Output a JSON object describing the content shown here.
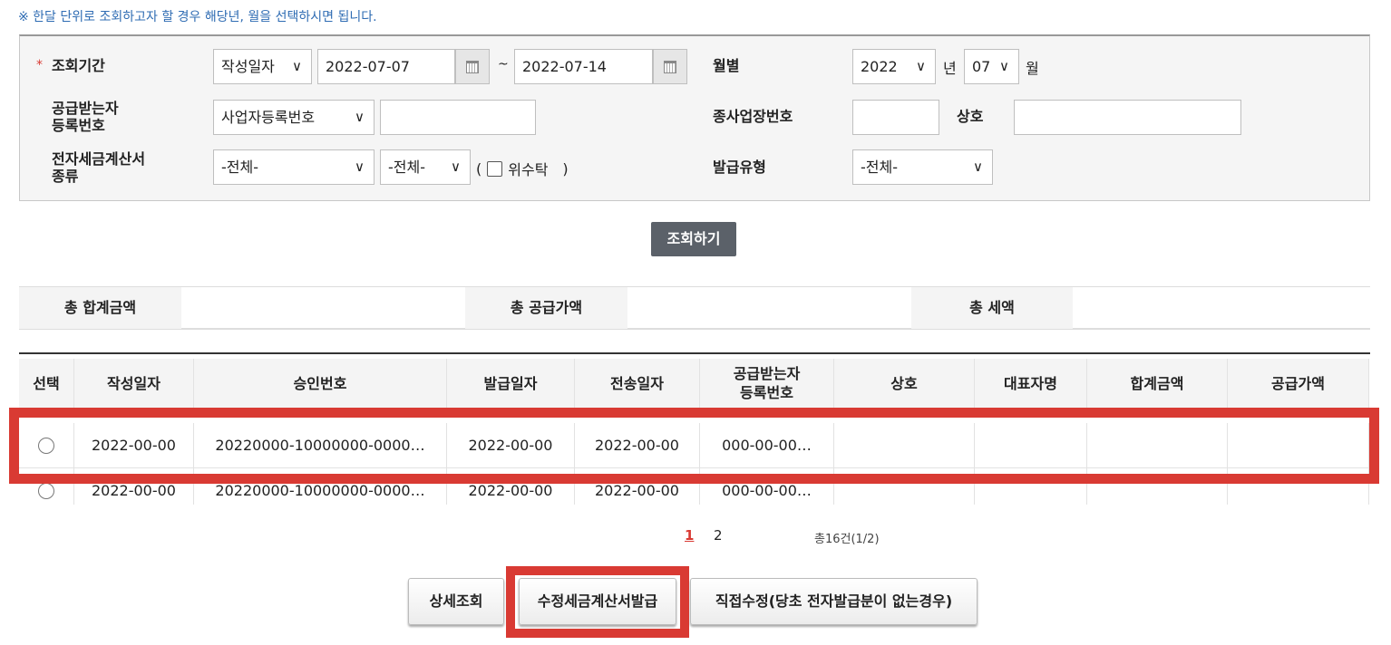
{
  "notice": "※ 한달 단위로 조회하고자 할 경우 해당년, 월을 선택하시면 됩니다.",
  "filters": {
    "period_label": "조회기간",
    "period_type": "작성일자",
    "date_from": "2022-07-07",
    "date_sep": "~",
    "date_to": "2022-07-14",
    "monthly_label": "월별",
    "year": "2022",
    "year_unit": "년",
    "month": "07",
    "month_unit": "월",
    "recipient_label_1": "공급받는자",
    "recipient_label_2": "등록번호",
    "recipient_type": "사업자등록번호",
    "recipient_value": "",
    "branch_label": "종사업장번호",
    "branch_value": "",
    "company_label": "상호",
    "company_value": "",
    "kind_label_1": "전자세금계산서",
    "kind_label_2": "종류",
    "kind_1": "-전체-",
    "kind_2": "-전체-",
    "consign_open": "(",
    "consign_label": "위수탁",
    "consign_close": ")",
    "issue_type_label": "발급유형",
    "issue_type": "-전체-"
  },
  "search_button": "조회하기",
  "summary": {
    "total_label": "총 합계금액",
    "supply_label": "총 공급가액",
    "tax_label": "총 세액",
    "total": "",
    "supply": "",
    "tax": ""
  },
  "table": {
    "headers": [
      "선택",
      "작성일자",
      "승인번호",
      "발급일자",
      "전송일자",
      "공급받는자\n등록번호",
      "상호",
      "대표자명",
      "합계금액",
      "공급가액"
    ],
    "rows": [
      [
        "",
        "2022-00-00",
        "20220000-10000000-0000…",
        "2022-00-00",
        "2022-00-00",
        "000-00-00…",
        "",
        "",
        "",
        ""
      ],
      [
        "",
        "2022-00-00",
        "20220000-10000000-0000…",
        "2022-00-00",
        "2022-00-00",
        "000-00-00…",
        "",
        "",
        "",
        ""
      ]
    ]
  },
  "pagination": {
    "pages": [
      "1",
      "2"
    ],
    "current": "1",
    "summary": "총16건(1/2)"
  },
  "buttons": {
    "detail": "상세조회",
    "amend": "수정세금계산서발급",
    "direct": "직접수정(당초 전자발급분이 없는경우)"
  },
  "colors": {
    "highlight": "#d93a33",
    "notice": "#2f6cb3",
    "search_button": "#5b6169"
  }
}
